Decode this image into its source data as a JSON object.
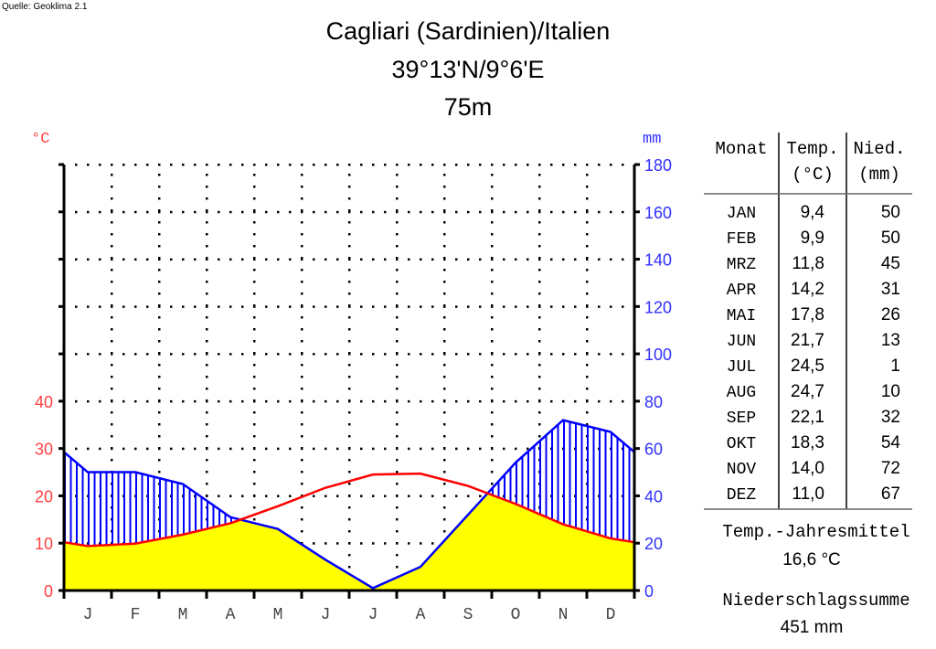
{
  "source": "Quelle: Geoklima 2.1",
  "chart_data": {
    "type": "line",
    "title": "Cagliari (Sardinien)/Italien",
    "subtitle": "39°13'N/9°6'E",
    "elevation": "75m",
    "left_unit": "°C",
    "right_unit": "mm",
    "left_ticks": [
      "0",
      "10",
      "20",
      "30",
      "40"
    ],
    "right_ticks": [
      "0",
      "20",
      "40",
      "60",
      "80",
      "100",
      "120",
      "140",
      "160",
      "180"
    ],
    "ylim_temp": [
      0,
      90
    ],
    "ylim_precip": [
      0,
      180
    ],
    "month_letters": [
      "J",
      "F",
      "M",
      "A",
      "M",
      "J",
      "J",
      "A",
      "S",
      "O",
      "N",
      "D"
    ],
    "series": [
      {
        "name": "Temperatur (°C)",
        "color": "#ff0000",
        "values": [
          9.4,
          9.9,
          11.8,
          14.2,
          17.8,
          21.7,
          24.5,
          24.7,
          22.1,
          18.3,
          14.0,
          11.0
        ]
      },
      {
        "name": "Niederschlag (mm)",
        "color": "#0000ff",
        "values": [
          50,
          50,
          45,
          31,
          26,
          13,
          1,
          10,
          32,
          54,
          72,
          67
        ]
      }
    ],
    "arid_fill": "#ffff00"
  },
  "table": {
    "headers": [
      "Monat",
      "Temp.",
      "Nied."
    ],
    "units": [
      "",
      "(°C)",
      "(mm)"
    ],
    "rows": [
      [
        "JAN",
        "9,4",
        "50"
      ],
      [
        "FEB",
        "9,9",
        "50"
      ],
      [
        "MRZ",
        "11,8",
        "45"
      ],
      [
        "APR",
        "14,2",
        "31"
      ],
      [
        "MAI",
        "17,8",
        "26"
      ],
      [
        "JUN",
        "21,7",
        "13"
      ],
      [
        "JUL",
        "24,5",
        "1"
      ],
      [
        "AUG",
        "24,7",
        "10"
      ],
      [
        "SEP",
        "22,1",
        "32"
      ],
      [
        "OKT",
        "18,3",
        "54"
      ],
      [
        "NOV",
        "14,0",
        "72"
      ],
      [
        "DEZ",
        "11,0",
        "67"
      ]
    ],
    "annual_temp_label": "Temp.-Jahresmittel",
    "annual_temp": "16,6 °C",
    "annual_precip_label": "Niederschlagssumme",
    "annual_precip": "451 mm"
  }
}
